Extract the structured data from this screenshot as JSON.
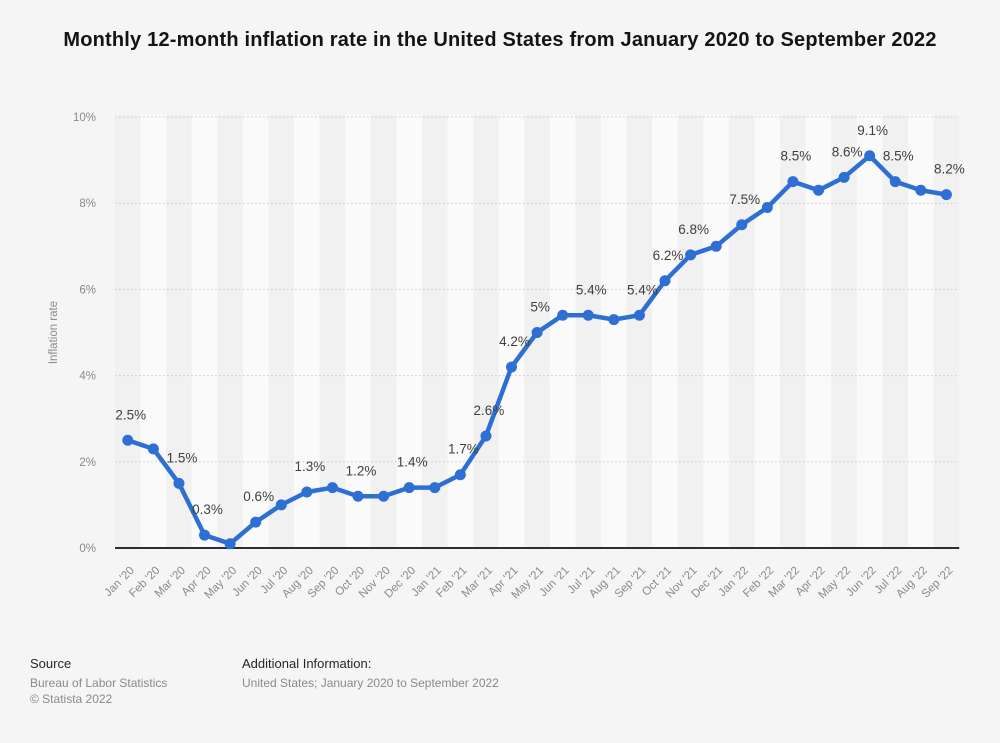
{
  "title": "Monthly 12-month inflation rate in the United States from January 2020 to September 2022",
  "chart_data": {
    "type": "line",
    "x": [
      "Jan '20",
      "Feb '20",
      "Mar '20",
      "Apr '20",
      "May '20",
      "Jun '20",
      "Jul '20",
      "Aug '20",
      "Sep '20",
      "Oct '20",
      "Nov '20",
      "Dec '20",
      "Jan '21",
      "Feb '21",
      "Mar '21",
      "Apr '21",
      "May '21",
      "Jun '21",
      "Jul '21",
      "Aug '21",
      "Sep '21",
      "Oct '21",
      "Nov '21",
      "Dec '21",
      "Jan '22",
      "Feb '22",
      "Mar '22",
      "Apr '22",
      "May '22",
      "Jun '22",
      "Jul '22",
      "Aug '22",
      "Sep '22"
    ],
    "values": [
      2.5,
      2.3,
      1.5,
      0.3,
      0.1,
      0.6,
      1.0,
      1.3,
      1.4,
      1.2,
      1.2,
      1.4,
      1.4,
      1.7,
      2.6,
      4.2,
      5.0,
      5.4,
      5.4,
      5.3,
      5.4,
      6.2,
      6.8,
      7.0,
      7.5,
      7.9,
      8.5,
      8.3,
      8.6,
      9.1,
      8.5,
      8.3,
      8.2
    ],
    "point_labels": [
      "2.5%",
      null,
      "1.5%",
      "0.3%",
      null,
      "0.6%",
      null,
      "1.3%",
      null,
      "1.2%",
      null,
      "1.4%",
      null,
      "1.7%",
      "2.6%",
      "4.2%",
      "5%",
      null,
      "5.4%",
      null,
      "5.4%",
      "6.2%",
      "6.8%",
      null,
      "7.5%",
      null,
      "8.5%",
      null,
      "8.6%",
      "9.1%",
      "8.5%",
      null,
      "8.2%"
    ],
    "ylabel": "Inflation rate",
    "yticks": [
      {
        "value": 0,
        "label": "0%"
      },
      {
        "value": 2,
        "label": "2%"
      },
      {
        "value": 4,
        "label": "4%"
      },
      {
        "value": 6,
        "label": "6%"
      },
      {
        "value": 8,
        "label": "8%"
      },
      {
        "value": 10,
        "label": "10%"
      }
    ],
    "ylim": [
      0,
      10
    ],
    "grid": "dotted-horizontal",
    "legend": "none",
    "colors": {
      "line": "#2e6fd3",
      "marker": "#2e6fd3",
      "point_label": "#3f3f3f",
      "tick_label": "#8a8a8a",
      "axis_title": "#8a8a8a",
      "gridline": "#c9c9c9",
      "axis_line": "#2e2e2e",
      "band_dark": "#f1f1f2",
      "band_light": "#fafafa",
      "background": "#f5f5f5",
      "title": "#141414"
    }
  },
  "footer": {
    "source_label": "Source",
    "source_value": "Bureau of Labor Statistics",
    "copyright": "© Statista 2022",
    "additional_label": "Additional Information:",
    "additional_value": "United States; January 2020 to September 2022"
  }
}
